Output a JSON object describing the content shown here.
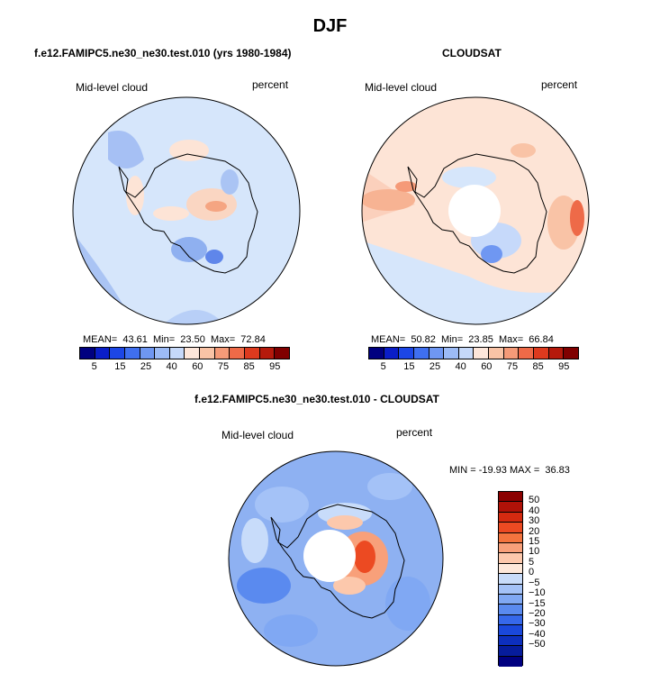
{
  "title": "DJF",
  "panels": [
    {
      "subtitle": "f.e12.FAMIPC5.ne30_ne30.test.010 (yrs 1980-1984)",
      "left_label": "Mid-level cloud",
      "right_label": "percent",
      "stats": {
        "mean_label": "MEAN=",
        "mean": "43.61",
        "min_label": "Min=",
        "min": "23.50",
        "max_label": "Max=",
        "max": "72.84"
      },
      "base_color": "#d6e6fb"
    },
    {
      "subtitle": "CLOUDSAT",
      "left_label": "Mid-level cloud",
      "right_label": "percent",
      "stats": {
        "mean_label": "MEAN=",
        "mean": "50.82",
        "min_label": "Min=",
        "min": "23.85",
        "max_label": "Max=",
        "max": "66.84"
      },
      "base_color": "#fde4d6"
    }
  ],
  "colorbar_abs": {
    "colors": [
      "#000080",
      "#0a1ec8",
      "#1c46e6",
      "#3f6ff0",
      "#6f97f2",
      "#9cbbf6",
      "#c6d9fa",
      "#fde6da",
      "#f9c3a6",
      "#f59a78",
      "#ee6a48",
      "#dd3a1e",
      "#b51a0c",
      "#800000"
    ],
    "ticks": [
      "5",
      "15",
      "25",
      "40",
      "60",
      "75",
      "85",
      "95"
    ]
  },
  "diff_panel": {
    "subtitle": "f.e12.FAMIPC5.ne30_ne30.test.010 - CLOUDSAT",
    "left_label": "Mid-level cloud",
    "right_label": "percent",
    "minmax": "MIN = -19.93 MAX =  36.83",
    "base_color": "#8eb1f2"
  },
  "colorbar_diff": {
    "colors": [
      "#8b0000",
      "#b01208",
      "#d42a10",
      "#ec4a22",
      "#f4743e",
      "#f8a07a",
      "#fcc8ac",
      "#fde8da",
      "#c8dcfa",
      "#a4c2f7",
      "#80a8f3",
      "#5a8aef",
      "#3668ea",
      "#1a48dc",
      "#0d2fbe",
      "#061c9c",
      "#000080"
    ],
    "ticks": [
      "50",
      "40",
      "30",
      "20",
      "15",
      "10",
      "5",
      "0",
      "−5",
      "−10",
      "−15",
      "−20",
      "−30",
      "−40",
      "−50"
    ]
  }
}
